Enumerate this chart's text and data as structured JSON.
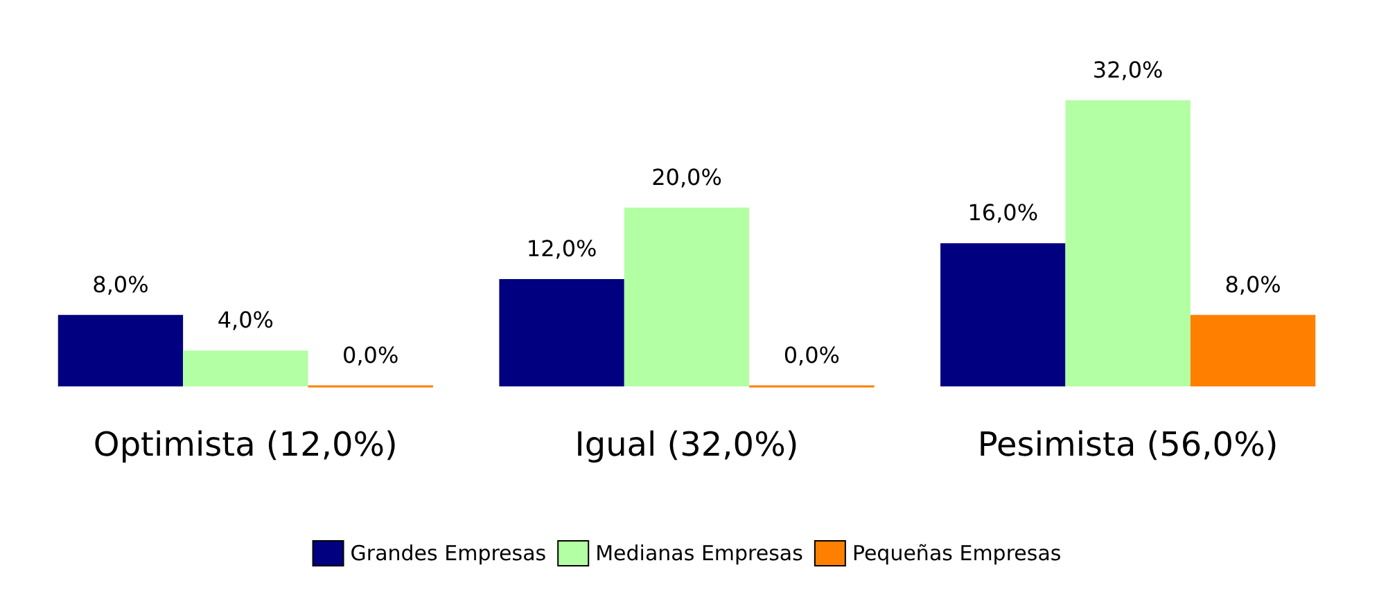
{
  "chart_data": {
    "type": "bar",
    "categories": [
      "Optimista (12,0%)",
      "Igual (32,0%)",
      "Pesimista (56,0%)"
    ],
    "series": [
      {
        "name": "Grandes Empresas",
        "color": "#000080",
        "values": [
          8,
          12,
          16
        ],
        "value_labels": [
          "8,0%",
          "12,0%",
          "16,0%"
        ]
      },
      {
        "name": "Medianas Empresas",
        "color": "#b3ffa3",
        "values": [
          4,
          20,
          32
        ],
        "value_labels": [
          "4,0%",
          "20,0%",
          "32,0%"
        ]
      },
      {
        "name": "Pequeñas Empresas",
        "color": "#ff8000",
        "values": [
          0,
          0,
          8
        ],
        "value_labels": [
          "0,0%",
          "0,0%",
          "8,0%"
        ]
      }
    ],
    "legend": "bottom",
    "grid": false
  }
}
